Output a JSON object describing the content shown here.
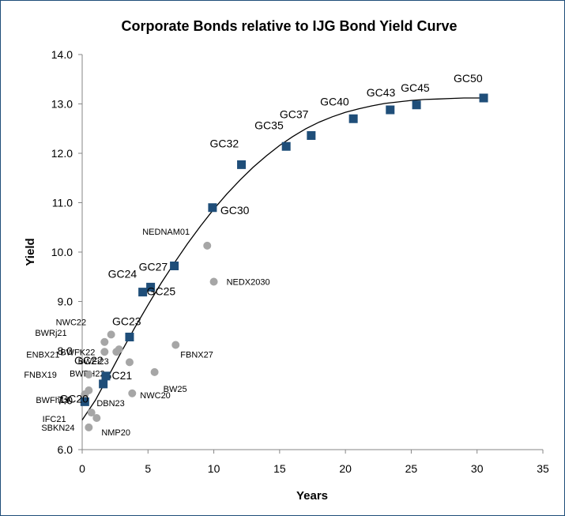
{
  "chart_data": {
    "type": "scatter",
    "title": "Corporate Bonds relative to IJG Bond Yield Curve",
    "xlabel": "Years",
    "ylabel": "Yield",
    "xlim": [
      0,
      35
    ],
    "ylim": [
      6.0,
      14.0
    ],
    "x_ticks": [
      0,
      5,
      10,
      15,
      20,
      25,
      30,
      35
    ],
    "y_ticks": [
      6.0,
      7.0,
      8.0,
      9.0,
      10.0,
      11.0,
      12.0,
      13.0,
      14.0
    ],
    "grid": false,
    "legend": "none",
    "colors": {
      "government": "#1f4e79",
      "corporate": "#a6a6a6",
      "curve": "#000000"
    },
    "series": [
      {
        "marker": "square",
        "points": [
          {
            "label": "GC20",
            "x": 0.2,
            "y": 6.97
          },
          {
            "label": "GC21",
            "x": 1.6,
            "y": 7.33
          },
          {
            "label": "GC22",
            "x": 1.8,
            "y": 7.49
          },
          {
            "label": "GC23",
            "x": 3.6,
            "y": 8.28
          },
          {
            "label": "GC24",
            "x": 4.6,
            "y": 9.19
          },
          {
            "label": "GC25",
            "x": 5.2,
            "y": 9.29
          },
          {
            "label": "GC27",
            "x": 7.0,
            "y": 9.72
          },
          {
            "label": "GC30",
            "x": 9.9,
            "y": 10.9
          },
          {
            "label": "GC32",
            "x": 12.1,
            "y": 11.77
          },
          {
            "label": "GC35",
            "x": 15.5,
            "y": 12.14
          },
          {
            "label": "GC37",
            "x": 17.4,
            "y": 12.36
          },
          {
            "label": "GC40",
            "x": 20.6,
            "y": 12.7
          },
          {
            "label": "GC43",
            "x": 23.4,
            "y": 12.88
          },
          {
            "label": "GC45",
            "x": 25.4,
            "y": 12.98
          },
          {
            "label": "GC50",
            "x": 30.5,
            "y": 13.12
          }
        ]
      },
      {
        "marker": "circle",
        "points": [
          {
            "label": "NEDNAM01",
            "x": 9.5,
            "y": 10.13
          },
          {
            "label": "NEDX2030",
            "x": 10.0,
            "y": 9.4
          },
          {
            "label": "NWC22",
            "x": 2.2,
            "y": 8.33
          },
          {
            "label": "BWRj21",
            "x": 1.7,
            "y": 8.18
          },
          {
            "label": "BWFK22",
            "x": 1.7,
            "y": 7.98
          },
          {
            "label": "ENBX21",
            "x": 2.6,
            "y": 7.98
          },
          {
            "label": "BWFi23",
            "x": 2.8,
            "y": 8.03
          },
          {
            "label": "FBNX27",
            "x": 7.1,
            "y": 8.12
          },
          {
            "label": "BWFH22",
            "x": 3.6,
            "y": 7.77
          },
          {
            "label": "BW25",
            "x": 5.5,
            "y": 7.57
          },
          {
            "label": "FNBX19",
            "x": 0.5,
            "y": 7.52
          },
          {
            "label": "NWC20",
            "x": 3.8,
            "y": 7.14
          },
          {
            "label": "DBN23",
            "x": 0.2,
            "y": 7.12
          },
          {
            "label": "BWFh19",
            "x": 0.5,
            "y": 7.2
          },
          {
            "label": "IFC21",
            "x": 0.7,
            "y": 6.75
          },
          {
            "label": "SBKN24",
            "x": 1.1,
            "y": 6.64
          },
          {
            "label": "NMP20",
            "x": 0.5,
            "y": 6.45
          }
        ]
      }
    ],
    "curve": {
      "x": [
        0,
        1,
        2,
        3,
        4,
        5,
        6,
        7,
        8,
        9,
        10,
        11,
        12,
        13,
        14,
        15,
        16,
        17,
        18,
        19,
        20,
        21,
        22,
        23,
        24,
        25,
        26,
        27,
        28,
        29,
        30,
        30.5
      ],
      "y": [
        6.6,
        7.0,
        7.49,
        7.99,
        8.47,
        8.93,
        9.37,
        9.78,
        10.17,
        10.53,
        10.87,
        11.18,
        11.46,
        11.72,
        11.95,
        12.16,
        12.34,
        12.5,
        12.63,
        12.74,
        12.83,
        12.9,
        12.96,
        13.01,
        13.04,
        13.07,
        13.09,
        13.1,
        13.11,
        13.12,
        13.12,
        13.12
      ]
    }
  }
}
